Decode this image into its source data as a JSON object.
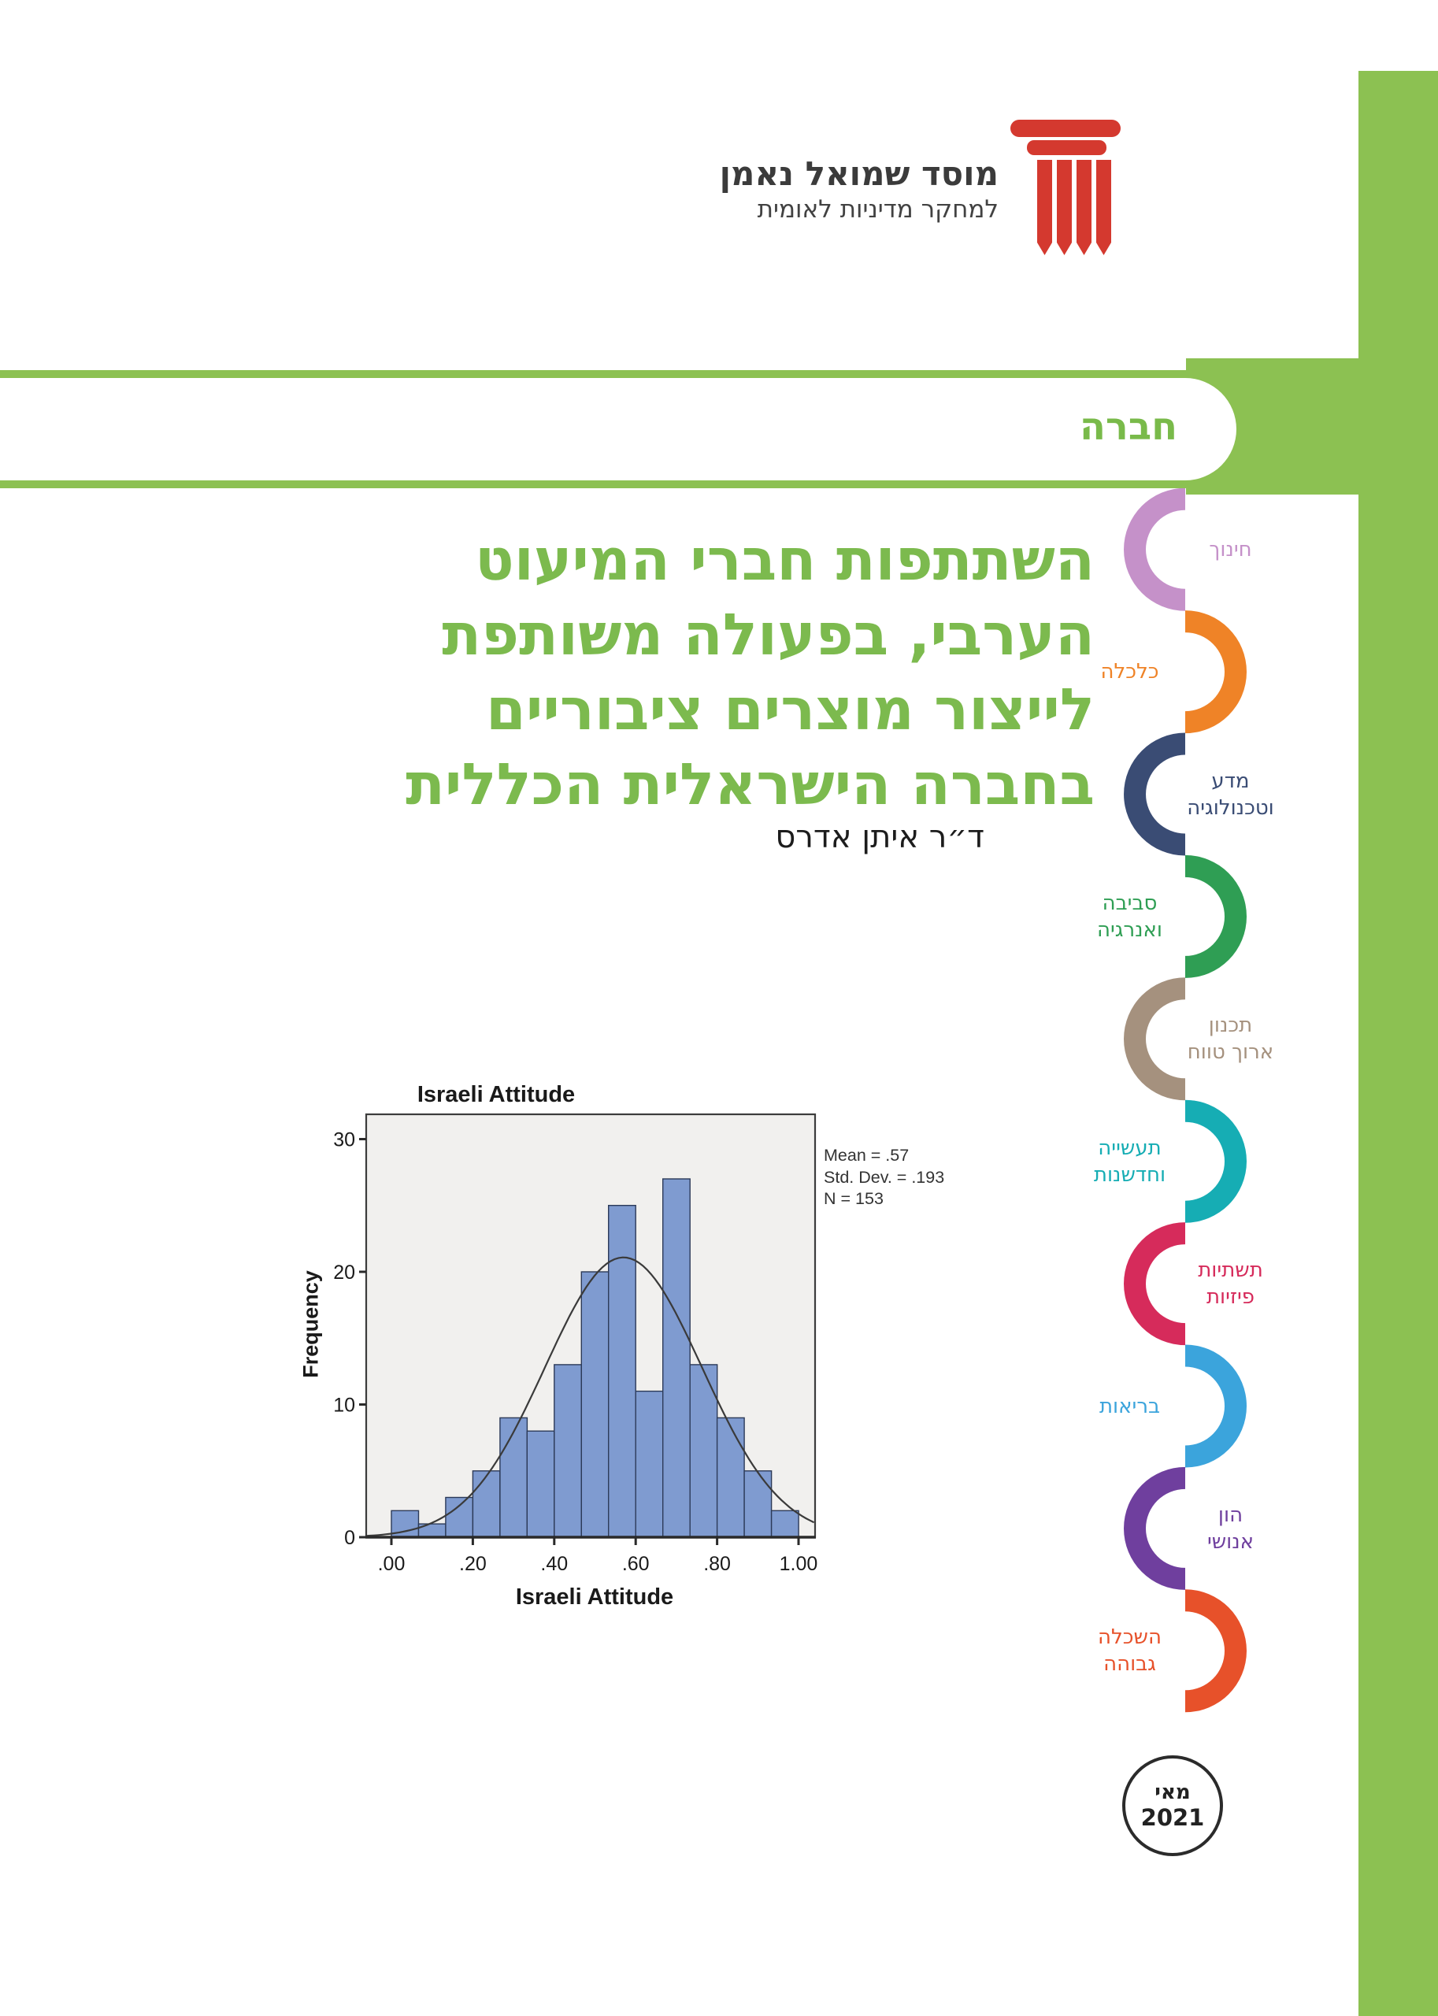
{
  "page": {
    "background": "#ffffff",
    "accent_green": "#8cc152"
  },
  "logo": {
    "icon": "pillar-icon",
    "icon_color": "#d4392f",
    "title": "מוסד שמואל נאמן",
    "subtitle": "למחקר מדיניות לאומית",
    "text_color": "#3b3b3b"
  },
  "category_band": {
    "label": "חברה",
    "band_color": "#8cc152",
    "label_color": "#79ba4a"
  },
  "title": {
    "color": "#7cba4e",
    "lines": [
      "השתתפות חברי המיעוט",
      "הערבי, בפעולה משותפת",
      "לייצור מוצרים ציבוריים",
      "בחברה הישראלית הכללית"
    ]
  },
  "author": "ד״ר איתן אדרס",
  "chart_data": {
    "type": "bar",
    "subtype": "histogram",
    "title": "Israeli Attitude",
    "xlabel": "Israeli Attitude",
    "ylabel": "Frequency",
    "bin_start": 0,
    "bin_width": 0.06667,
    "values": [
      2,
      1,
      3,
      5,
      9,
      8,
      13,
      20,
      25,
      11,
      27,
      13,
      9,
      5,
      2
    ],
    "x_ticks": [
      {
        "value": 0.0,
        "label": ".00"
      },
      {
        "value": 0.2,
        "label": ".20"
      },
      {
        "value": 0.4,
        "label": ".40"
      },
      {
        "value": 0.6,
        "label": ".60"
      },
      {
        "value": 0.8,
        "label": ".80"
      },
      {
        "value": 1.0,
        "label": "1.00"
      }
    ],
    "y_ticks": [
      {
        "value": 0,
        "label": "0"
      },
      {
        "value": 10,
        "label": "10"
      },
      {
        "value": 20,
        "label": "20"
      },
      {
        "value": 30,
        "label": "30"
      }
    ],
    "xlim": [
      -0.062,
      1.041
    ],
    "ylim": [
      0,
      31.9
    ],
    "grid": false,
    "legend": "none",
    "stats_box": [
      "Mean = .57",
      "Std. Dev. = .193",
      "N = 153"
    ],
    "normal_curve": {
      "mean": 0.57,
      "sd": 0.193,
      "n": 153
    },
    "bar_fill": "#7f9bd0",
    "bar_stroke": "#2c3a58",
    "plot_bg": "#f1f0ee",
    "frame_color": "#3c3c3c",
    "curve_color": "#3a3a3a"
  },
  "sidebar": {
    "items": [
      {
        "label_lines": [
          "חינוך"
        ],
        "color": "#c591c9",
        "side": "right"
      },
      {
        "label_lines": [
          "כלכלה"
        ],
        "color": "#ef8327",
        "side": "left"
      },
      {
        "label_lines": [
          "מדע",
          "וטכנולוגיה"
        ],
        "color": "#3a4c74",
        "side": "right"
      },
      {
        "label_lines": [
          "סביבה",
          "ואנרגיה"
        ],
        "color": "#2f9e54",
        "side": "left"
      },
      {
        "label_lines": [
          "תכנון",
          "ארוך טווח"
        ],
        "color": "#a5917e",
        "side": "right"
      },
      {
        "label_lines": [
          "תעשייה",
          "וחדשנות"
        ],
        "color": "#16adb4",
        "side": "left"
      },
      {
        "label_lines": [
          "תשתיות",
          "פיזיות"
        ],
        "color": "#d62b5b",
        "side": "right"
      },
      {
        "label_lines": [
          "בריאות"
        ],
        "color": "#3ba4dc",
        "side": "left"
      },
      {
        "label_lines": [
          "הון",
          "אנושי"
        ],
        "color": "#6f3f9e",
        "side": "right"
      },
      {
        "label_lines": [
          "השכלה",
          "גבוהה"
        ],
        "color": "#e7512a",
        "side": "left"
      }
    ]
  },
  "date_stamp": {
    "month": "מאי",
    "year": "2021"
  }
}
